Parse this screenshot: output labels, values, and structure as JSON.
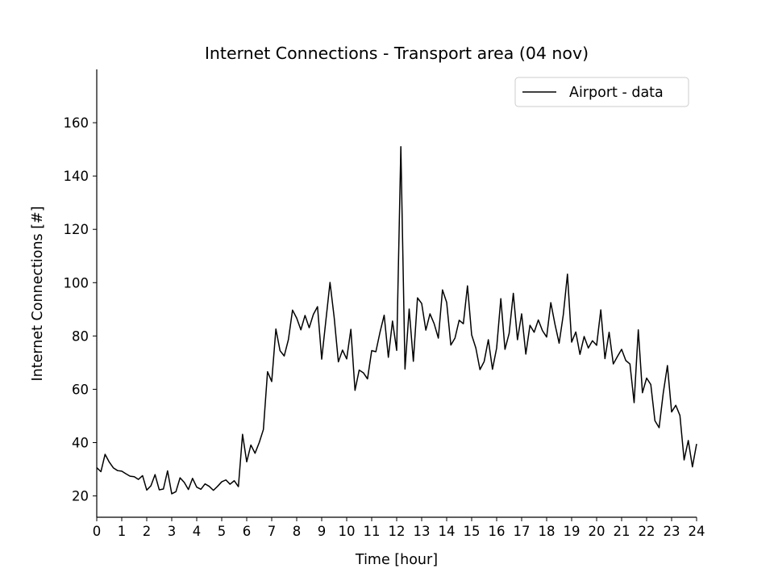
{
  "chart_data": {
    "type": "line",
    "title": "Internet Connections - Transport area (04 nov)",
    "xlabel": "Time [hour]",
    "ylabel": "Internet Connections [#]",
    "xlim": [
      0,
      24
    ],
    "ylim": [
      12,
      180
    ],
    "xticks": [
      0,
      1,
      2,
      3,
      4,
      5,
      6,
      7,
      8,
      9,
      10,
      11,
      12,
      13,
      14,
      15,
      16,
      17,
      18,
      19,
      20,
      21,
      22,
      23,
      24
    ],
    "yticks": [
      20,
      40,
      60,
      80,
      100,
      120,
      140,
      160
    ],
    "grid": false,
    "legend_position": "top-right",
    "colors": {
      "line": "#000000",
      "axis": "#000000",
      "legend_border": "#cccccc"
    },
    "series": [
      {
        "name": "Airport - data",
        "x": [
          0.0,
          0.167,
          0.333,
          0.5,
          0.667,
          0.833,
          1.0,
          1.167,
          1.333,
          1.5,
          1.667,
          1.833,
          2.0,
          2.167,
          2.333,
          2.5,
          2.667,
          2.833,
          3.0,
          3.167,
          3.333,
          3.5,
          3.667,
          3.833,
          4.0,
          4.167,
          4.333,
          4.5,
          4.667,
          4.833,
          5.0,
          5.167,
          5.333,
          5.5,
          5.667,
          5.833,
          6.0,
          6.167,
          6.333,
          6.5,
          6.667,
          6.833,
          7.0,
          7.167,
          7.333,
          7.5,
          7.667,
          7.833,
          8.0,
          8.167,
          8.333,
          8.5,
          8.667,
          8.833,
          9.0,
          9.167,
          9.333,
          9.5,
          9.667,
          9.833,
          10.0,
          10.167,
          10.333,
          10.5,
          10.667,
          10.833,
          11.0,
          11.167,
          11.333,
          11.5,
          11.667,
          11.833,
          12.0,
          12.167,
          12.333,
          12.5,
          12.667,
          12.833,
          13.0,
          13.167,
          13.333,
          13.5,
          13.667,
          13.833,
          14.0,
          14.167,
          14.333,
          14.5,
          14.667,
          14.833,
          15.0,
          15.167,
          15.333,
          15.5,
          15.667,
          15.833,
          16.0,
          16.167,
          16.333,
          16.5,
          16.667,
          16.833,
          17.0,
          17.167,
          17.333,
          17.5,
          17.667,
          17.833,
          18.0,
          18.167,
          18.333,
          18.5,
          18.667,
          18.833,
          19.0,
          19.167,
          19.333,
          19.5,
          19.667,
          19.833,
          20.0,
          20.167,
          20.333,
          20.5,
          20.667,
          20.833,
          21.0,
          21.167,
          21.333,
          21.5,
          21.667,
          21.833,
          22.0,
          22.167,
          22.333,
          22.5,
          22.667,
          22.833,
          23.0,
          23.167,
          23.333,
          23.5,
          23.667,
          23.833,
          24.0
        ],
        "y": [
          30.6,
          29.1,
          35.6,
          32.7,
          30.5,
          29.5,
          29.3,
          28.3,
          27.4,
          27.2,
          26.2,
          27.6,
          22.2,
          23.8,
          28.0,
          22.3,
          22.6,
          29.4,
          20.8,
          21.6,
          26.8,
          25.1,
          22.4,
          26.6,
          23.3,
          22.5,
          24.5,
          23.6,
          22.1,
          23.6,
          25.3,
          26.0,
          24.4,
          25.7,
          23.5,
          43.1,
          32.8,
          39.1,
          36.0,
          40.0,
          44.9,
          66.6,
          62.9,
          82.6,
          74.5,
          72.5,
          78.6,
          89.7,
          86.7,
          82.3,
          87.7,
          83.1,
          88.1,
          91.0,
          71.3,
          85.8,
          100.1,
          86.9,
          70.3,
          74.7,
          71.4,
          82.5,
          59.6,
          67.2,
          66.2,
          63.9,
          74.5,
          74.1,
          81.4,
          87.8,
          72.0,
          85.6,
          74.6,
          151.0,
          67.6,
          90.1,
          70.5,
          94.3,
          92.2,
          82.2,
          88.3,
          84.6,
          79.2,
          97.3,
          92.6,
          76.6,
          79.2,
          85.9,
          84.6,
          98.8,
          80.4,
          75.5,
          67.4,
          70.4,
          78.6,
          67.5,
          75.5,
          94.0,
          75.0,
          81.0,
          96.0,
          78.6,
          88.3,
          73.2,
          84.0,
          81.4,
          86.0,
          82.0,
          79.6,
          92.5,
          84.4,
          77.3,
          88.0,
          103.2,
          77.7,
          81.5,
          73.1,
          79.8,
          75.5,
          78.2,
          76.5,
          89.8,
          71.5,
          81.4,
          69.5,
          72.3,
          75.0,
          70.8,
          69.5,
          55.0,
          82.3,
          58.7,
          64.2,
          61.8,
          48.2,
          45.6,
          58.7,
          68.9,
          51.5,
          54.0,
          50.2,
          33.5,
          40.8,
          30.9,
          39.5
        ]
      }
    ]
  }
}
